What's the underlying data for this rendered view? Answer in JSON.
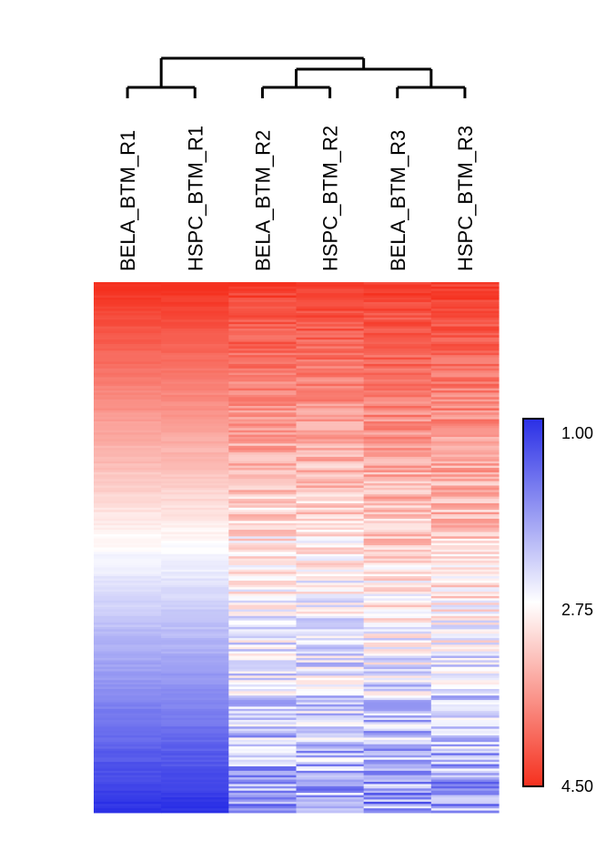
{
  "chart_data": {
    "type": "heatmap",
    "columns": [
      "BELA_BTM_R1",
      "HSPC_BTM_R1",
      "BELA_BTM_R2",
      "HSPC_BTM_R2",
      "BELA_BTM_R3",
      "HSPC_BTM_R3"
    ],
    "dendrogram": [
      {
        "merge": [
          "BELA_BTM_R1",
          "HSPC_BTM_R1"
        ]
      },
      {
        "merge": [
          "BELA_BTM_R2",
          "HSPC_BTM_R2"
        ]
      },
      {
        "merge": [
          "BELA_BTM_R3",
          "HSPC_BTM_R3"
        ]
      },
      {
        "merge": [
          "R2 cluster",
          "R3 cluster"
        ]
      },
      {
        "merge": [
          "R1 cluster",
          "R2+R3 cluster"
        ]
      }
    ],
    "row_order": "sorted by value, high at top",
    "value_profile": {
      "BELA_BTM_R1": {
        "top": 4.5,
        "middle": 2.75,
        "bottom": 1.0
      },
      "HSPC_BTM_R1": {
        "top": 4.5,
        "middle": 2.75,
        "bottom": 1.0
      },
      "BELA_BTM_R2": {
        "top": 4.4,
        "middle": 2.9,
        "bottom": 2.0
      },
      "HSPC_BTM_R2": {
        "top": 4.4,
        "middle": 2.9,
        "bottom": 2.0
      },
      "BELA_BTM_R3": {
        "top": 4.4,
        "middle": 3.1,
        "bottom": 1.9
      },
      "HSPC_BTM_R3": {
        "top": 4.4,
        "middle": 3.1,
        "bottom": 1.9
      }
    },
    "colorbar": {
      "ticks": [
        "1.00",
        "2.75",
        "4.50"
      ],
      "min": 1.0,
      "mid": 2.75,
      "max": 4.5,
      "colors": {
        "low": "#2a2fe6",
        "mid": "#ffffff",
        "high": "#f5301e"
      }
    }
  }
}
